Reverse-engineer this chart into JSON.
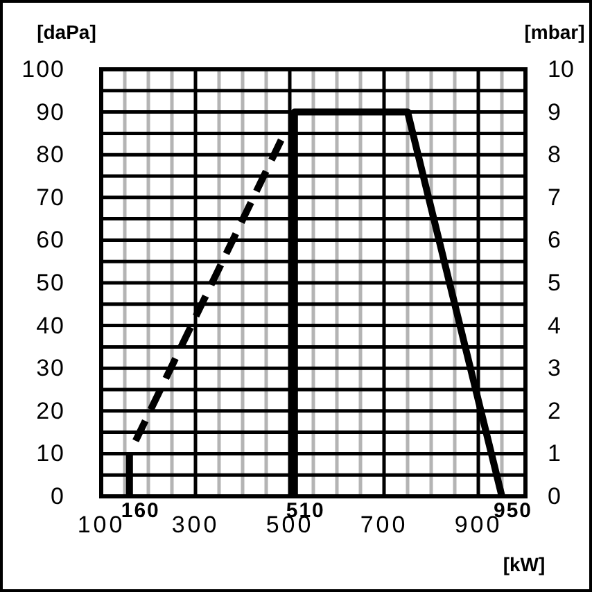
{
  "chart_data": {
    "type": "line",
    "xlabel": "[kW]",
    "ylabel": "[daPa]",
    "y2label": "[mbar]",
    "xlim": [
      100,
      1000
    ],
    "ylim": [
      0,
      100
    ],
    "y2lim": [
      0,
      10
    ],
    "xticks": [
      100,
      {
        "value": 150,
        "label": null
      },
      {
        "value": 200,
        "label": null
      },
      {
        "value": 250,
        "label": null
      },
      300,
      {
        "value": 350,
        "label": null
      },
      {
        "value": 400,
        "label": null
      },
      {
        "value": 450,
        "label": null
      },
      500,
      {
        "value": 550,
        "label": null
      },
      {
        "value": 600,
        "label": null
      },
      {
        "value": 650,
        "label": null
      },
      700,
      {
        "value": 750,
        "label": null
      },
      {
        "value": 800,
        "label": null
      },
      {
        "value": 850,
        "label": null
      },
      900,
      {
        "value": 950,
        "label": null
      },
      {
        "value": 1000,
        "label": null
      }
    ],
    "yticks": [
      0,
      {
        "value": 5,
        "label": null
      },
      10,
      {
        "value": 15,
        "label": null
      },
      20,
      {
        "value": 25,
        "label": null
      },
      30,
      {
        "value": 35,
        "label": null
      },
      40,
      {
        "value": 45,
        "label": null
      },
      50,
      {
        "value": 55,
        "label": null
      },
      60,
      {
        "value": 65,
        "label": null
      },
      70,
      {
        "value": 75,
        "label": null
      },
      80,
      {
        "value": 85,
        "label": null
      },
      90,
      {
        "value": 95,
        "label": null
      },
      100
    ],
    "y2ticks": [
      0,
      1,
      2,
      3,
      4,
      5,
      6,
      7,
      8,
      9,
      10
    ],
    "grid": true,
    "marker": "none",
    "series": [
      {
        "color": "#000000",
        "line_style": "solid",
        "x": [
          160,
          160
        ],
        "values": [
          0,
          10
        ]
      },
      {
        "color": "#000000",
        "line_style": "dashed",
        "x": [
          173,
          493
        ],
        "values": [
          13,
          86
        ]
      },
      {
        "color": "#000000",
        "line_style": "solid",
        "x": [
          510,
          510,
          750,
          950
        ],
        "values": [
          0,
          90,
          90,
          0
        ]
      }
    ],
    "annotations": [
      {
        "text": "160",
        "x": 160,
        "y": 0
      },
      {
        "text": "510",
        "x": 510,
        "y": 0
      },
      {
        "text": "950",
        "x": 950,
        "y": 0
      }
    ]
  }
}
